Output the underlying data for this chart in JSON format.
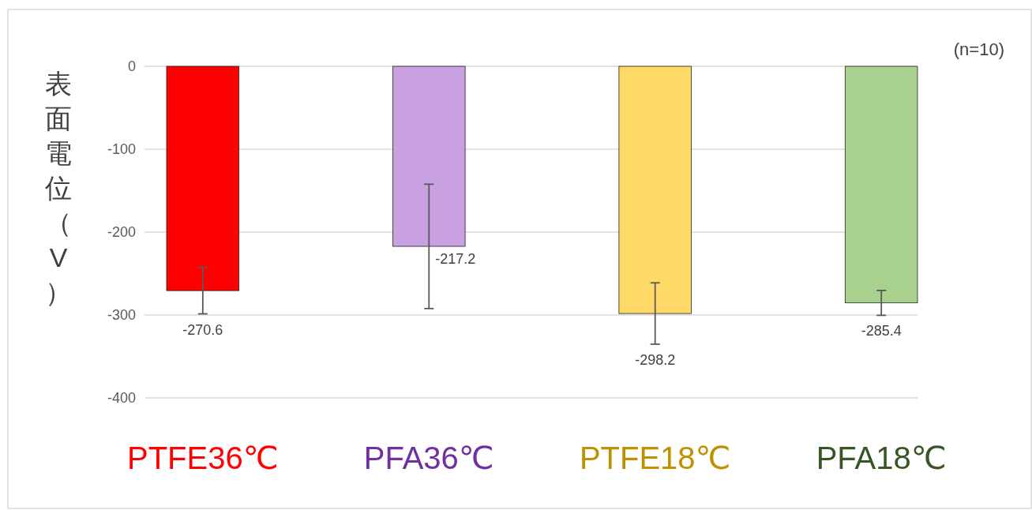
{
  "chart_data": {
    "type": "bar",
    "ylabel": "表面電位（V）",
    "categories": [
      "PTFE36℃",
      "PFA36℃",
      "PTFE18℃",
      "PFA18℃"
    ],
    "values": [
      -270.6,
      -217.2,
      -298.2,
      -285.4
    ],
    "colors": [
      "#ff0000",
      "#c9a0e0",
      "#ffd966",
      "#a9d18e"
    ],
    "errors": [
      28,
      75,
      37,
      15
    ],
    "data_labels": true,
    "ylim": [
      -400,
      0
    ],
    "yticks": [
      -400,
      -300,
      -200,
      -100,
      0
    ],
    "grid": "y",
    "annotations": [
      "(n=10)"
    ]
  }
}
